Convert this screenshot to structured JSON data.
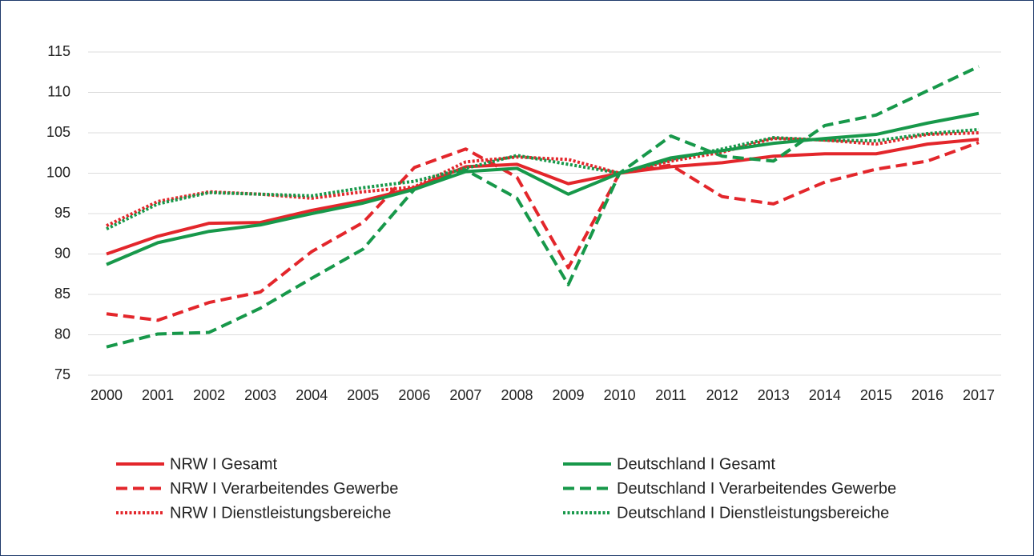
{
  "chart_data": {
    "type": "line",
    "categories": [
      "2000",
      "2001",
      "2002",
      "2003",
      "2004",
      "2005",
      "2006",
      "2007",
      "2008",
      "2009",
      "2010",
      "2011",
      "2012",
      "2013",
      "2014",
      "2015",
      "2016",
      "2017"
    ],
    "ylim": [
      75,
      115
    ],
    "yticks": [
      75,
      80,
      85,
      90,
      95,
      100,
      105,
      110,
      115
    ],
    "grid": true,
    "legend": "bottom",
    "series": [
      {
        "name": "NRW I Gesamt",
        "color": "#e3262b",
        "style": "solid",
        "values": [
          90.0,
          92.2,
          93.8,
          93.9,
          95.4,
          96.6,
          98.2,
          100.8,
          101.1,
          98.7,
          100,
          100.8,
          101.3,
          102.1,
          102.4,
          102.4,
          103.6,
          104.2
        ]
      },
      {
        "name": "NRW I Verarbeitendes Gewerbe",
        "color": "#e3262b",
        "style": "dashed",
        "values": [
          82.6,
          81.8,
          84.0,
          85.3,
          90.3,
          93.9,
          100.7,
          103.0,
          99.5,
          88.3,
          100,
          101.0,
          97.1,
          96.2,
          98.9,
          100.5,
          101.5,
          103.8
        ]
      },
      {
        "name": "NRW I Dienstleistungsbereiche",
        "color": "#e3262b",
        "style": "dotted",
        "values": [
          93.5,
          96.5,
          97.7,
          97.4,
          96.9,
          97.7,
          98.3,
          101.4,
          102.0,
          101.7,
          100,
          101.5,
          102.6,
          104.3,
          104.1,
          103.6,
          104.8,
          105.0
        ]
      },
      {
        "name": "Deutschland I Gesamt",
        "color": "#17984a",
        "style": "solid",
        "values": [
          88.7,
          91.4,
          92.8,
          93.6,
          95.0,
          96.3,
          98.0,
          100.2,
          100.6,
          97.4,
          100,
          101.9,
          102.8,
          103.7,
          104.3,
          104.8,
          106.2,
          107.4
        ]
      },
      {
        "name": "Deutschland I Verarbeitendes Gewerbe",
        "color": "#17984a",
        "style": "dashed",
        "values": [
          78.5,
          80.1,
          80.3,
          83.3,
          87.0,
          90.6,
          98.0,
          100.4,
          96.9,
          86.2,
          100,
          104.6,
          102.1,
          101.5,
          105.9,
          107.2,
          110.2,
          113.2
        ]
      },
      {
        "name": "Deutschland I Dienstleistungsbereiche",
        "color": "#17984a",
        "style": "dotted",
        "values": [
          93.1,
          96.2,
          97.6,
          97.4,
          97.2,
          98.2,
          99.0,
          100.6,
          102.2,
          101.1,
          100,
          101.7,
          103.0,
          104.4,
          104.1,
          104.0,
          104.9,
          105.4
        ]
      }
    ]
  }
}
